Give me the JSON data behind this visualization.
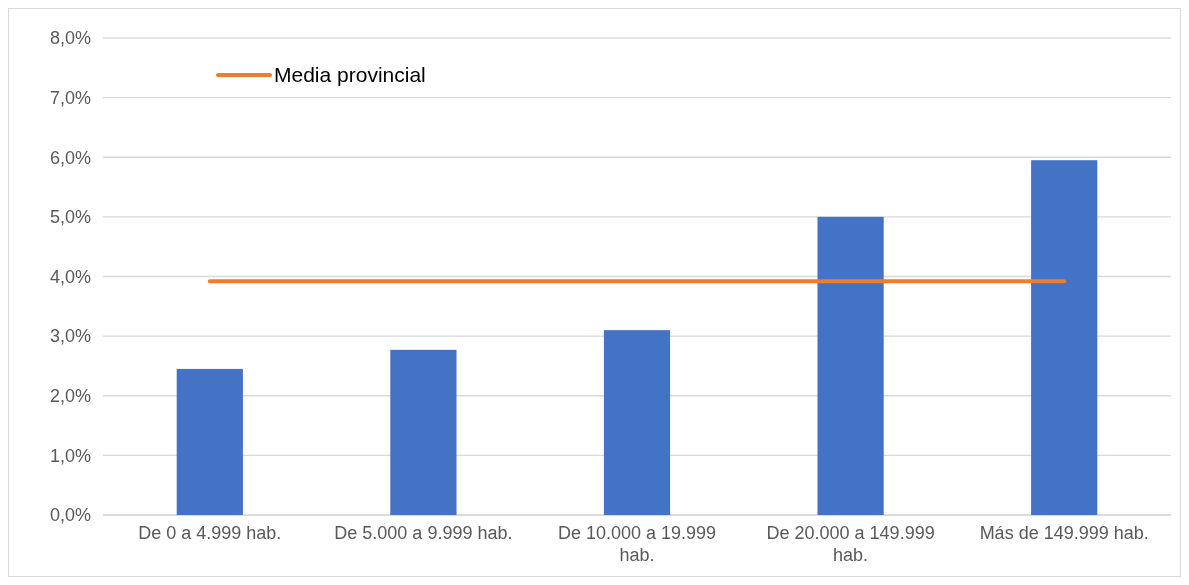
{
  "chart_data": {
    "type": "bar",
    "categories": [
      "De 0 a 4.999 hab.",
      "De 5.000 a 9.999 hab.",
      "De 10.000 a 19.999 hab.",
      "De 20.000 a 149.999 hab.",
      "Más de 149.999 hab."
    ],
    "series": [
      {
        "color": "#4472c4",
        "values": [
          2.45,
          2.77,
          3.1,
          5.0,
          5.95
        ]
      },
      {
        "type": "line",
        "name": "Media provincial",
        "color": "#ed7d31",
        "values": [
          3.92,
          3.92,
          3.92,
          3.92,
          3.92
        ]
      }
    ],
    "ylim": [
      0,
      8
    ],
    "yticks": [
      {
        "value": 0,
        "label": "0,0%"
      },
      {
        "value": 1,
        "label": "1,0%"
      },
      {
        "value": 2,
        "label": "2,0%"
      },
      {
        "value": 3,
        "label": "3,0%"
      },
      {
        "value": 4,
        "label": "4,0%"
      },
      {
        "value": 5,
        "label": "5,0%"
      },
      {
        "value": 6,
        "label": "6,0%"
      },
      {
        "value": 7,
        "label": "7,0%"
      },
      {
        "value": 8,
        "label": "8,0%"
      }
    ],
    "grid": "y",
    "legend": "top left",
    "marker": "none",
    "line_style": "solid"
  }
}
